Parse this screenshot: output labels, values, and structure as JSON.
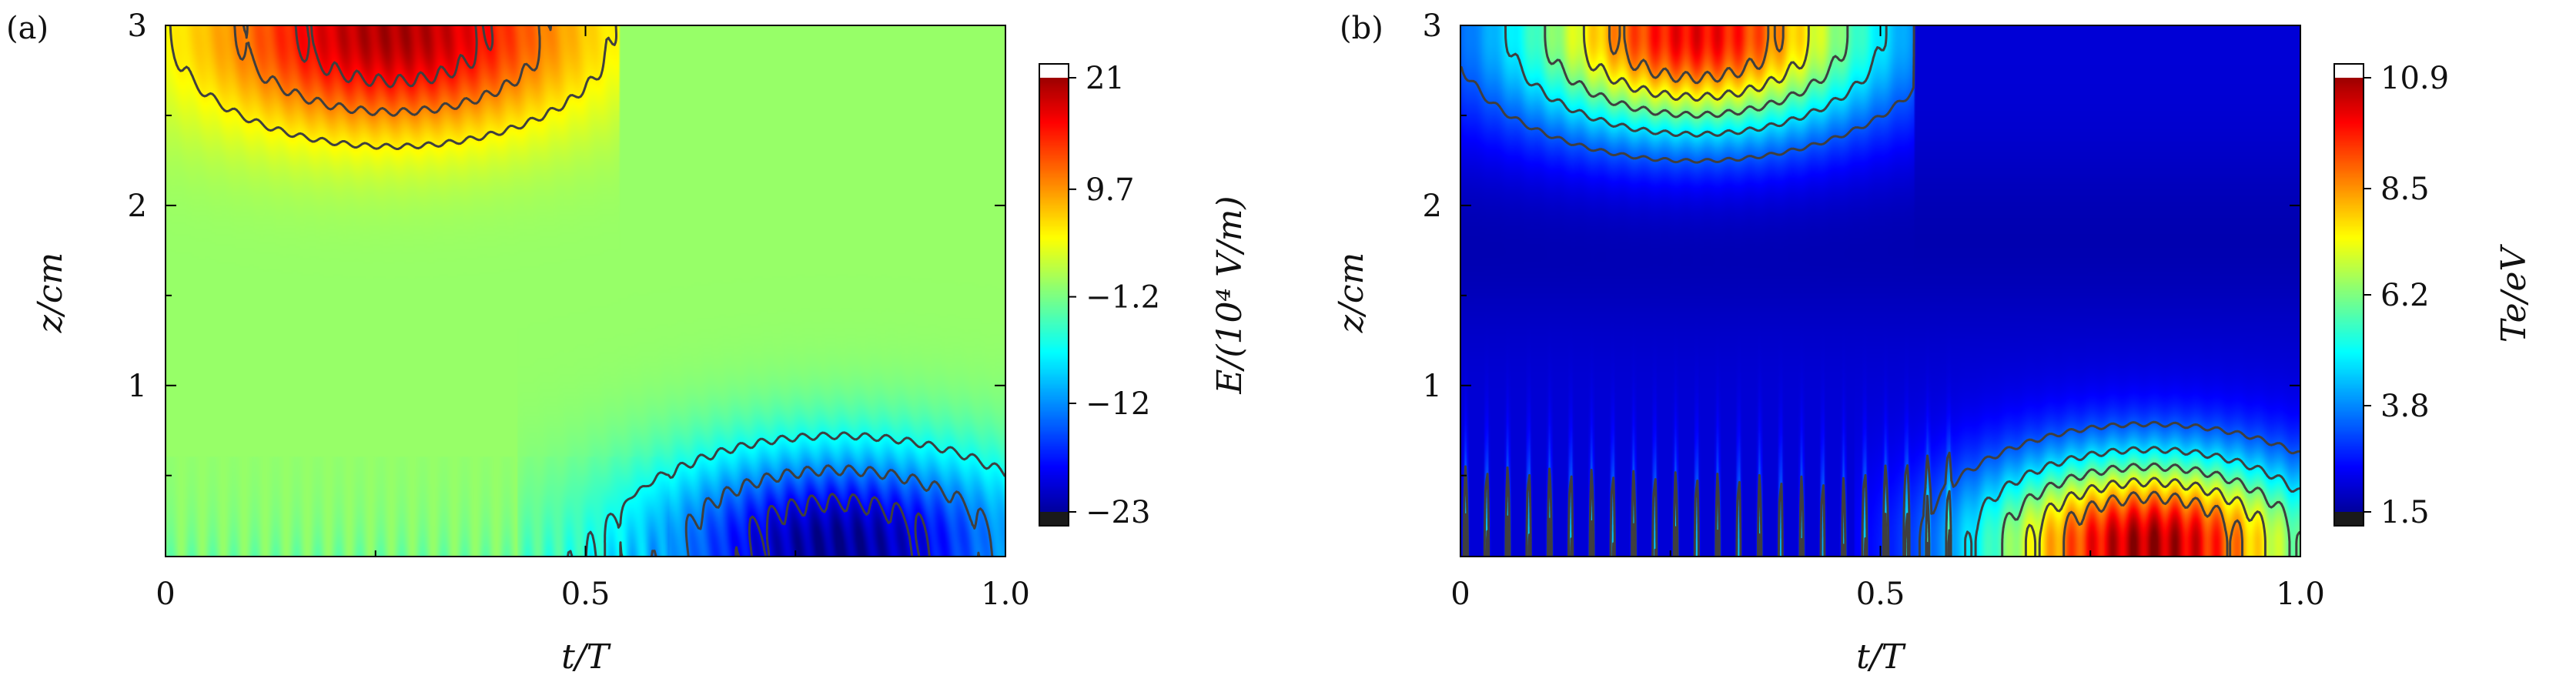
{
  "chart_data": [
    {
      "type": "heatmap",
      "panel_label": "(a)",
      "xlabel": "t/T",
      "ylabel": "z/cm",
      "colorbar_label": "E/(10⁴ V/m)",
      "x_ticks": [
        "0",
        "0.5",
        "1.0"
      ],
      "x_tick_values": [
        0,
        0.5,
        1.0
      ],
      "y_ticks": [
        "1",
        "2",
        "3"
      ],
      "y_tick_values": [
        1,
        2,
        3
      ],
      "xlim": [
        0,
        1.0
      ],
      "ylim": [
        0.05,
        3.0
      ],
      "colorbar_ticks": [
        "21",
        "9.7",
        "−1.2",
        "−12",
        "−23"
      ],
      "colorbar_tick_values": [
        21,
        9.7,
        -1.2,
        -12,
        -23
      ],
      "colorbar_range": [
        -23,
        21
      ],
      "colormap": "jet",
      "background_value": 0,
      "features": [
        {
          "name": "upper positive lobe",
          "t_range": [
            0.0,
            0.52
          ],
          "z_range": [
            2.2,
            3.0
          ],
          "peak_t": 0.27,
          "peak_z": 2.95,
          "peak_value": 19
        },
        {
          "name": "lower negative lobe",
          "t_range": [
            0.5,
            1.0
          ],
          "z_range": [
            0.05,
            0.92
          ],
          "peak_t": 0.8,
          "peak_z": 0.12,
          "peak_value": -22
        }
      ],
      "contour_lines": true,
      "contour_color": "#3f3f3f",
      "oscillation_periods_per_T": 40
    },
    {
      "type": "heatmap",
      "panel_label": "(b)",
      "xlabel": "t/T",
      "ylabel": "z/cm",
      "colorbar_label": "Te/eV",
      "x_ticks": [
        "0",
        "0.5",
        "1.0"
      ],
      "x_tick_values": [
        0,
        0.5,
        1.0
      ],
      "y_ticks": [
        "1",
        "2",
        "3"
      ],
      "y_tick_values": [
        1,
        2,
        3
      ],
      "xlim": [
        0,
        1.0
      ],
      "ylim": [
        0.05,
        3.0
      ],
      "colorbar_ticks": [
        "10.9",
        "8.5",
        "6.2",
        "3.8",
        "1.5"
      ],
      "colorbar_tick_values": [
        10.9,
        8.5,
        6.2,
        3.8,
        1.5
      ],
      "colorbar_range": [
        1.5,
        10.9
      ],
      "colormap": "jet",
      "background_value": 2.3,
      "features": [
        {
          "name": "upper heated region",
          "t_range": [
            0.0,
            0.52
          ],
          "z_range": [
            2.2,
            3.0
          ],
          "peak_t": 0.28,
          "peak_z": 2.95,
          "peak_value": 9.8
        },
        {
          "name": "lower heated region",
          "t_range": [
            0.55,
            1.0
          ],
          "z_range": [
            0.05,
            0.85
          ],
          "peak_t": 0.82,
          "peak_z": 0.12,
          "peak_value": 10.5
        },
        {
          "name": "sheath spikes",
          "t_range": [
            0.0,
            0.55
          ],
          "z_range": [
            0.05,
            1.0
          ],
          "peak_value": 6.0
        }
      ],
      "contour_lines": true,
      "contour_color": "#3f3f3f",
      "oscillation_periods_per_T": 40
    }
  ]
}
